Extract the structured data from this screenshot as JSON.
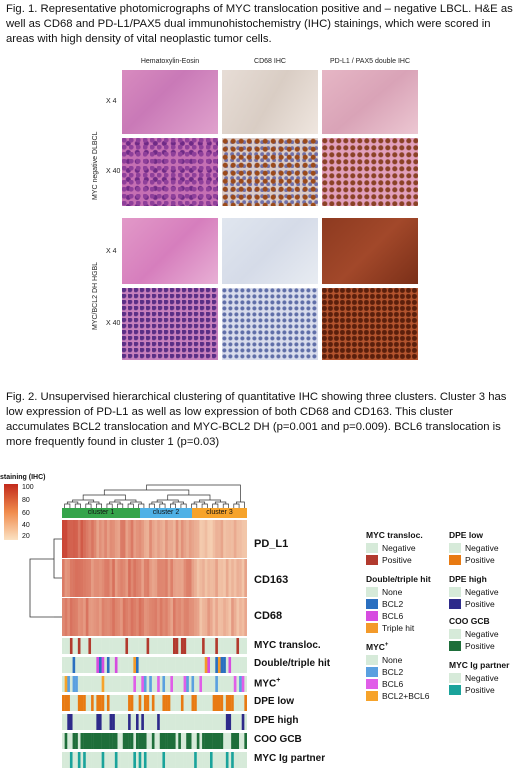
{
  "caption1": "Fig. 1. Representative photomicrographs of MYC translocation positive and – negative LBCL. H&E as well as CD68 and PD-L1/PAX5 dual immunohistochemistry (IHC) stainings, which were scored in areas with high density of vital neoplastic tumor cells.",
  "fig1": {
    "columns": [
      "Hematoxylin-Eosin",
      "CD68 IHC",
      "PD-L1 / PAX5 double IHC"
    ],
    "group_top": "MYC negative DLBCL",
    "group_bottom": "MYC/BCL2 DH HGBL",
    "row_labels": [
      "X 4",
      "X 40",
      "X 4",
      "X 40"
    ]
  },
  "caption2": "Fig. 2. Unsupervised hierarchical clustering of quantitative IHC showing three clusters. Cluster 3 has low expression of PD-L1 as well as low expression of both CD68 and CD163. This cluster accumulates BCL2 translocation and MYC-BCL2 DH (p=0.001 and p=0.009). BCL6 translocation is more frequently found in cluster 1 (p=0.03)",
  "fig2": {
    "scale_title": "staining (IHC)",
    "scale_ticks": [
      "100",
      "80",
      "60",
      "40",
      "20"
    ],
    "clusters": [
      "cluster 1",
      "cluster 2",
      "cluster 3"
    ],
    "cluster_colors": [
      "#34a44a",
      "#4fb1e6",
      "#f6a32b"
    ],
    "heatmap_rows": [
      "PD_L1",
      "CD163",
      "CD68"
    ],
    "annotation_rows": [
      "MYC transloc.",
      "Double/triple hit",
      "MYC",
      "DPE low",
      "DPE high",
      "COO GCB",
      "MYC Ig partner"
    ],
    "myc_superscript": "+",
    "legend": [
      {
        "title": "MYC transloc.",
        "items": [
          {
            "label": "Negative",
            "color": "#d6ead9"
          },
          {
            "label": "Positive",
            "color": "#b23a2e"
          }
        ]
      },
      {
        "title": "Double/triple hit",
        "items": [
          {
            "label": "None",
            "color": "#d6ead9"
          },
          {
            "label": "BCL2",
            "color": "#2a6fc0"
          },
          {
            "label": "BCL6",
            "color": "#d64ce0"
          },
          {
            "label": "Triple hit",
            "color": "#f39a2a"
          }
        ]
      },
      {
        "title": "MYC",
        "items": [
          {
            "label": "None",
            "color": "#d6ead9"
          },
          {
            "label": "BCL2",
            "color": "#5aa0e0"
          },
          {
            "label": "BCL6",
            "color": "#e05ee8"
          },
          {
            "label": "BCL2+BCL6",
            "color": "#f6a32b"
          }
        ]
      },
      {
        "title": "DPE low",
        "items": [
          {
            "label": "Negative",
            "color": "#d6ead9"
          },
          {
            "label": "Positive",
            "color": "#e87a12"
          }
        ]
      },
      {
        "title": "DPE high",
        "items": [
          {
            "label": "Negative",
            "color": "#d6ead9"
          },
          {
            "label": "Positive",
            "color": "#2d2a8a"
          }
        ]
      },
      {
        "title": "COO GCB",
        "items": [
          {
            "label": "Negative",
            "color": "#d6ead9"
          },
          {
            "label": "Positive",
            "color": "#1e6e3a"
          }
        ]
      },
      {
        "title": "MYC Ig partner",
        "items": [
          {
            "label": "Negative",
            "color": "#d6ead9"
          },
          {
            "label": "Positive",
            "color": "#1aa39b"
          }
        ]
      }
    ]
  }
}
